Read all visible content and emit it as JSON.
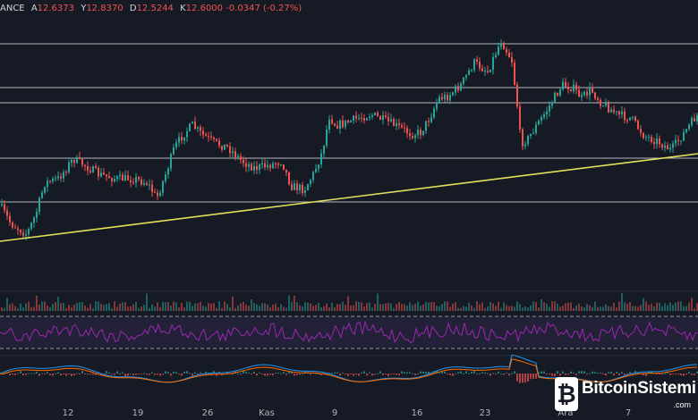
{
  "header": {
    "exchange": "ANCE",
    "open_label": "A",
    "open_value": "12.6373",
    "high_label": "Y",
    "high_value": "12.8370",
    "low_label": "D",
    "low_value": "12.5244",
    "close_label": "K",
    "close_value": "12.6000",
    "change_value": "-0.0347 (-0.27%)"
  },
  "colors": {
    "background": "#161a25",
    "up_candle": "#26a69a",
    "down_candle": "#ef5350",
    "horizontal_line": "#d1d4dc",
    "trendline": "#e6e05a",
    "rsi_line": "#9c27b0",
    "macd_line": "#2196f3",
    "signal_line": "#ff6d00"
  },
  "xaxis": {
    "labels": [
      "12",
      "19",
      "26",
      "Kas",
      "9",
      "16",
      "23",
      "Ara",
      "7"
    ]
  },
  "watermark": {
    "glyph": "₿",
    "name": "BitcoinSistemi",
    "suffix": ".com"
  },
  "chart_data": {
    "type": "candlestick",
    "symbol_exchange_fragment": "ANCE",
    "last_bar": {
      "open": 12.6373,
      "high": 12.837,
      "low": 12.5244,
      "close": 12.6,
      "change": -0.0347,
      "change_pct": -0.27
    },
    "x_tick_labels": [
      "12",
      "19",
      "26",
      "Kas",
      "9",
      "16",
      "23",
      "Ara",
      "7"
    ],
    "horizontal_lines": 5,
    "trendline": "rising support",
    "panes": [
      "price",
      "volume",
      "rsi",
      "macd"
    ]
  }
}
